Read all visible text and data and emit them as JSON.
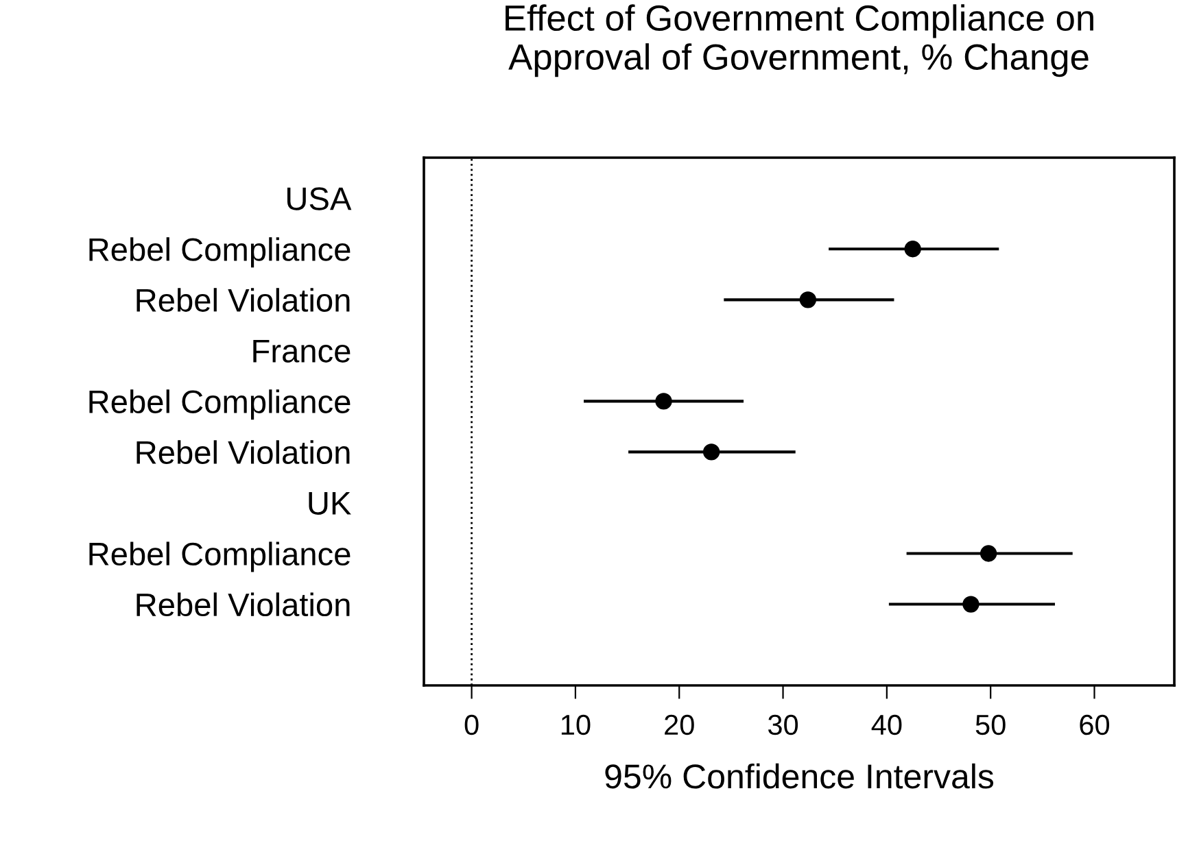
{
  "chart_data": {
    "type": "scatter",
    "orientation": "horizontal",
    "title": "Effect of Government Compliance on\nApproval of Government, % Change",
    "xlabel": "95% Confidence Intervals",
    "categories": [
      "USA",
      "Rebel Compliance",
      "Rebel Violation",
      "France",
      "Rebel Compliance",
      "Rebel Violation",
      "UK",
      "Rebel Compliance",
      "Rebel Violation"
    ],
    "series": [
      {
        "color": "#000000",
        "values": [
          null,
          42.5,
          32.4,
          null,
          18.5,
          23.1,
          null,
          49.8,
          48.1
        ],
        "errors": [
          null,
          [
            34.4,
            50.8
          ],
          [
            24.3,
            40.7
          ],
          null,
          [
            10.8,
            26.2
          ],
          [
            15.1,
            31.2
          ],
          null,
          [
            41.9,
            57.9
          ],
          [
            40.2,
            56.2
          ]
        ]
      }
    ],
    "xlim": [
      -4.6,
      67.7
    ],
    "xticks": [
      0,
      10,
      20,
      30,
      40,
      50,
      60
    ],
    "ref_lines": [
      {
        "axis": "x",
        "value": 0,
        "color": "#000000",
        "line_style": "dotted"
      }
    ],
    "marker": "circle",
    "grid": false,
    "legend": false
  }
}
